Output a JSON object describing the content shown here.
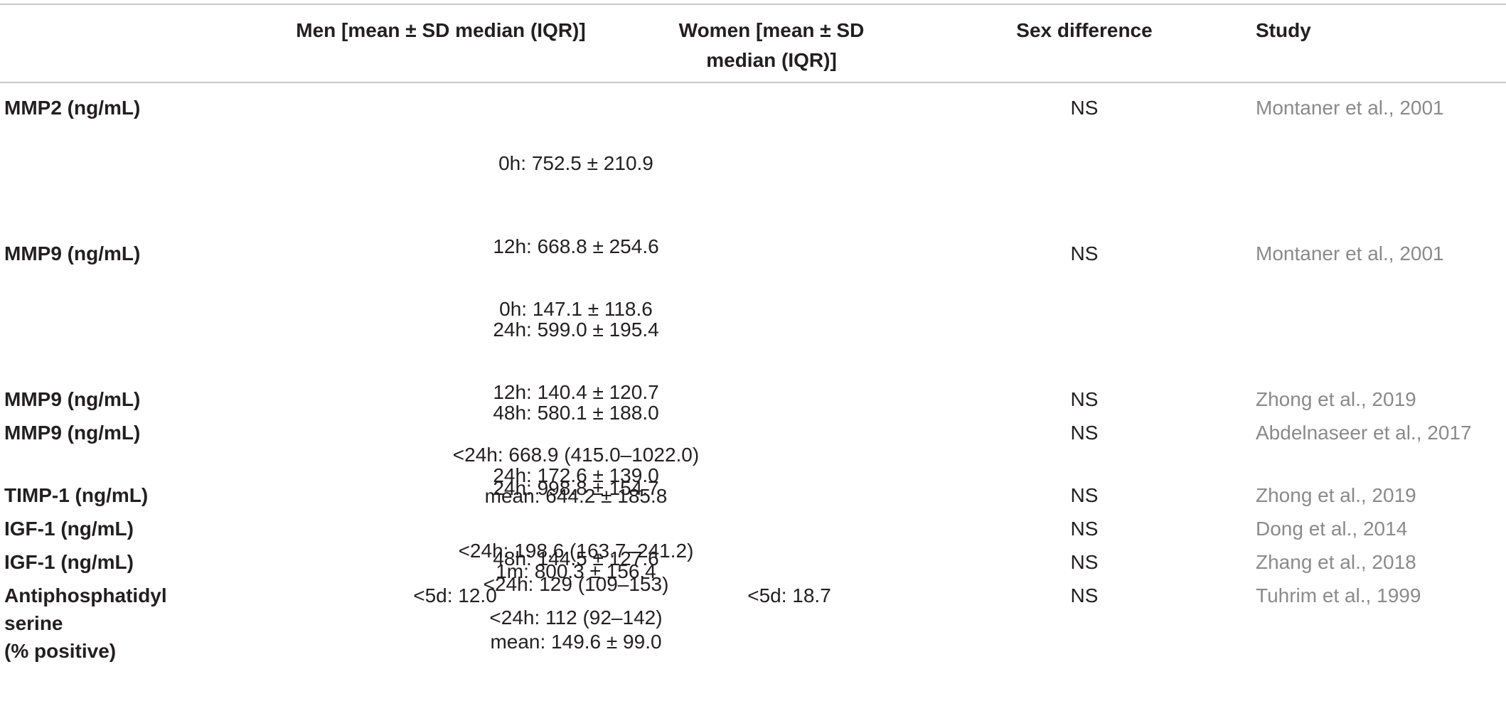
{
  "header": {
    "men": "Men [mean ± SD median (IQR)]",
    "women_line1": "Women [mean ± SD",
    "women_line2": "median (IQR)]",
    "sex_difference": "Sex difference",
    "study": "Study"
  },
  "rows": [
    {
      "label": "MMP2 (ng/mL)",
      "both": [
        "0h: 752.5 ± 210.9",
        "12h: 668.8 ± 254.6",
        "24h: 599.0 ± 195.4",
        "48h: 580.1 ± 188.0",
        "mean: 644.2 ± 185.8"
      ],
      "sex": "NS",
      "study": "Montaner et al., 2001"
    },
    {
      "label": "MMP9 (ng/mL)",
      "both": [
        "0h: 147.1 ± 118.6",
        "12h: 140.4 ± 120.7",
        "24h: 172.6 ± 139.0",
        "48h: 144.5 ± 127.6",
        "mean: 149.6 ± 99.0"
      ],
      "sex": "NS",
      "study": "Montaner et al., 2001"
    },
    {
      "label": "MMP9 (ng/mL)",
      "both": [
        "<24h: 668.9 (415.0–1022.0)"
      ],
      "sex": "NS",
      "study": "Zhong et al., 2019"
    },
    {
      "label": "MMP9 (ng/mL)",
      "both": [
        "24h: 998.8 ± 154.7",
        "1m: 800.3 ± 156.4"
      ],
      "sex": "NS",
      "study": "Abdelnaseer et al., 2017"
    },
    {
      "label": "TIMP-1 (ng/mL)",
      "both": [
        "<24h: 198.6 (163.7–241.2)"
      ],
      "sex": "NS",
      "study": "Zhong et al., 2019"
    },
    {
      "label": "IGF-1 (ng/mL)",
      "both": [
        "<24h: 129 (109–153)"
      ],
      "sex": "NS",
      "study": "Dong et al., 2014"
    },
    {
      "label": "IGF-1 (ng/mL)",
      "both": [
        "<24h: 112 (92–142)"
      ],
      "sex": "NS",
      "study": "Zhang et al., 2018"
    },
    {
      "label_lines": [
        "Antiphosphatidyl",
        "serine",
        "(% positive)"
      ],
      "men": "<5d: 12.0",
      "women": "<5d: 18.7",
      "sex": "NS",
      "study": "Tuhrim et al., 1999"
    }
  ]
}
